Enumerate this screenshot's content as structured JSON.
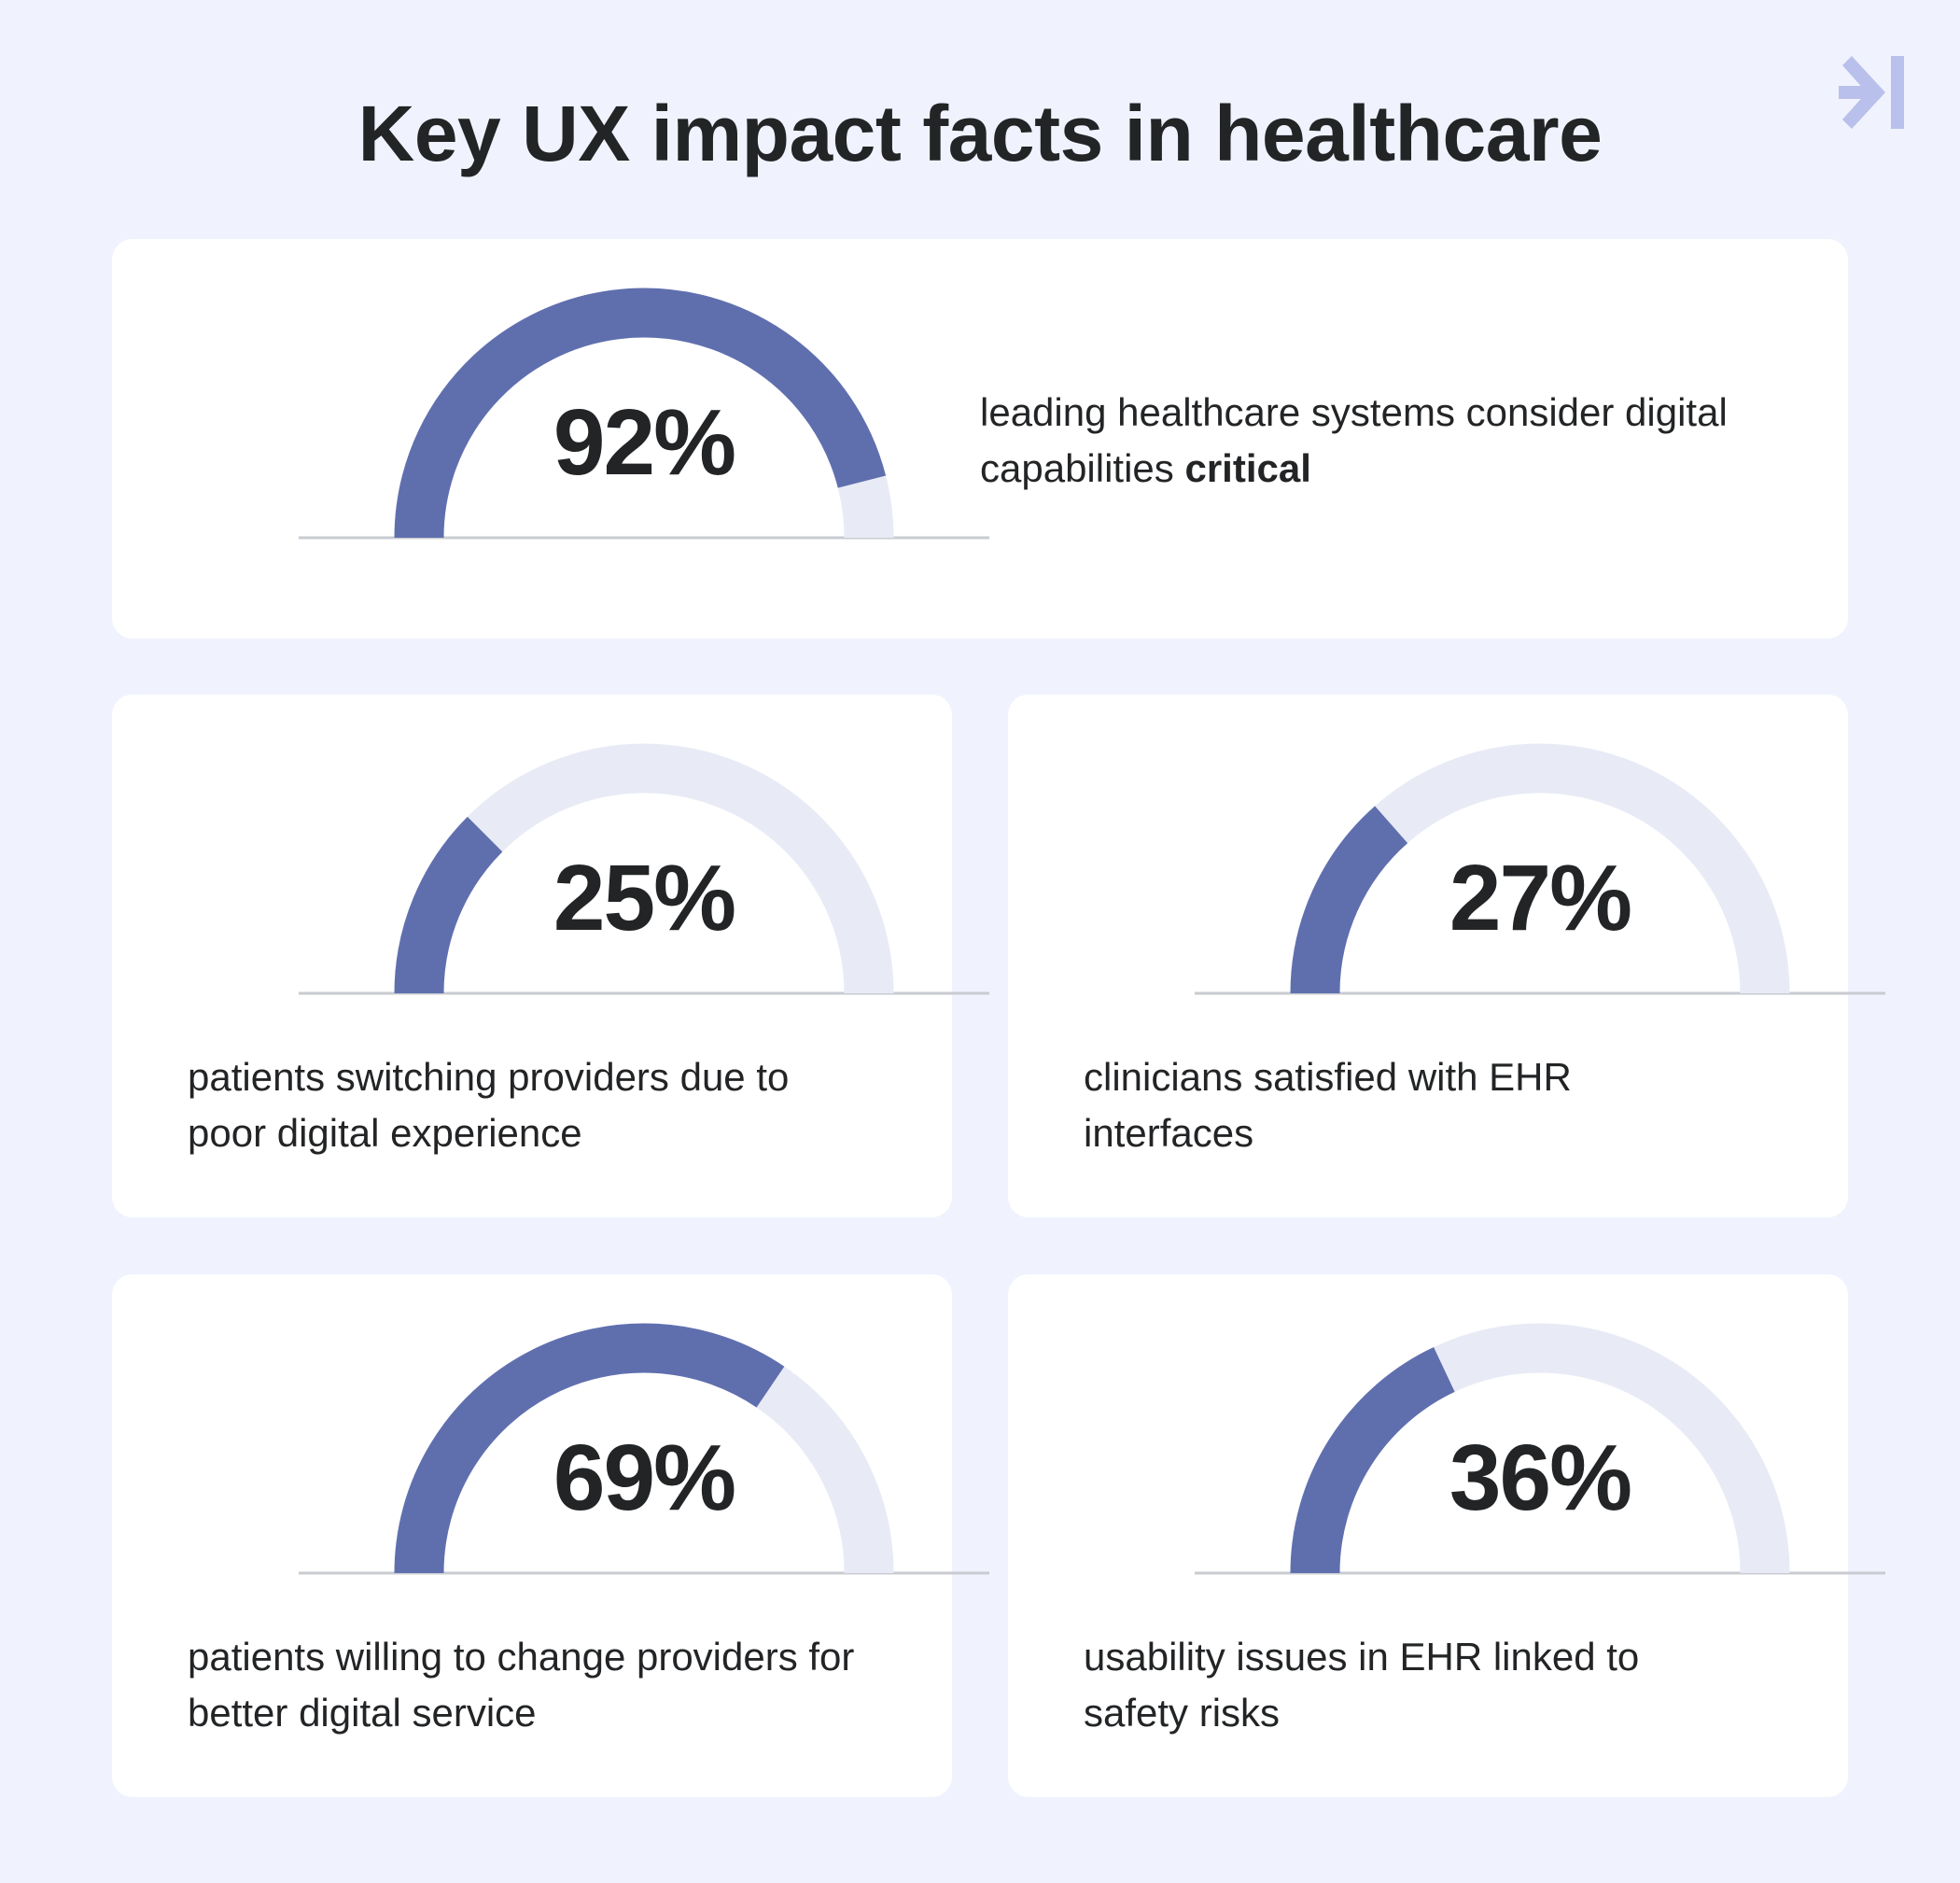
{
  "title": "Key UX impact facts in healthcare",
  "colors": {
    "background": "#f0f3fe",
    "card": "#ffffff",
    "filled": "#5f6fae",
    "track": "#e8ebf5",
    "baseline": "#c9cbd1",
    "text": "#222426",
    "logo": "#b9c0eb"
  },
  "icons": {
    "logo": "arrow-into-bar-icon"
  },
  "facts": [
    {
      "value": "92%",
      "description": "leading healthcare systems consider digital capabilities",
      "emphasis": "critical"
    },
    {
      "value": "25%",
      "description": "patients switching providers due to poor digital experience"
    },
    {
      "value": "27%",
      "description": "clinicians satisfied with EHR interfaces"
    },
    {
      "value": "69%",
      "description": "patients willing to change providers for better digital service"
    },
    {
      "value": "36%",
      "description": "usability issues in EHR linked to safety risks"
    }
  ],
  "chart_data": {
    "type": "gauge",
    "title": "Key UX impact facts in healthcare",
    "unit": "%",
    "range": [
      0,
      100
    ],
    "items": [
      {
        "label": "leading healthcare systems consider digital capabilities critical",
        "value": 92
      },
      {
        "label": "patients switching providers due to poor digital experience",
        "value": 25
      },
      {
        "label": "clinicians satisfied with EHR interfaces",
        "value": 27
      },
      {
        "label": "patients willing to change providers for better digital service",
        "value": 69
      },
      {
        "label": "usability issues in EHR linked to safety risks",
        "value": 36
      }
    ]
  }
}
